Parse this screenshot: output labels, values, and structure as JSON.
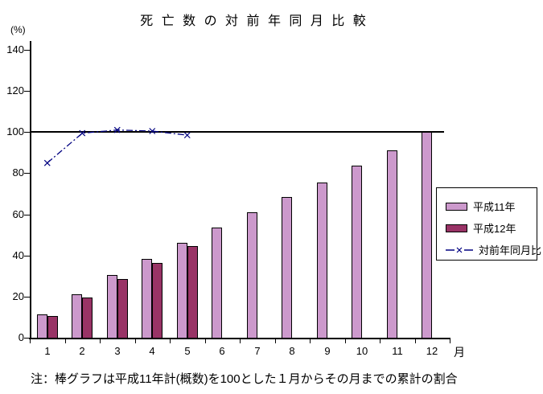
{
  "title_display": "死 亡 数 の 対 前 年 同 月 比 較",
  "y_axis_unit": "(%)",
  "x_axis_unit": "月",
  "note": "注：棒グラフは平成11年計(概数)を100とした１月からその月までの累計の割合",
  "colors": {
    "bar_heisei11": "#CC99CC",
    "bar_heisei12": "#993366",
    "ratio_line": "#000080",
    "axis": "#000000"
  },
  "chart_data": {
    "type": "bar",
    "title": "死亡数の対前年同月比較",
    "categories": [
      "1",
      "2",
      "3",
      "4",
      "5",
      "6",
      "7",
      "8",
      "9",
      "10",
      "11",
      "12"
    ],
    "x_axis_label": "月",
    "y_axis_label": "(%)",
    "ylim": [
      0,
      140
    ],
    "yticks": [
      0,
      20,
      40,
      60,
      80,
      100,
      120,
      140
    ],
    "reference_line": 100,
    "grid": false,
    "legend_position": "right",
    "series": [
      {
        "name": "平成11年",
        "type": "bar",
        "color": "#CC99CC",
        "values": [
          11.5,
          21,
          30.5,
          38.5,
          46,
          53.5,
          61,
          68.5,
          75.5,
          83.5,
          91,
          100
        ]
      },
      {
        "name": "平成12年",
        "type": "bar",
        "color": "#993366",
        "values": [
          10.5,
          19.5,
          28.5,
          36.5,
          44.5,
          null,
          null,
          null,
          null,
          null,
          null,
          null
        ]
      },
      {
        "name": "対前年同月比",
        "type": "line",
        "marker": "x",
        "color": "#000080",
        "values": [
          85,
          99.5,
          101,
          100.5,
          98.5,
          null,
          null,
          null,
          null,
          null,
          null,
          null
        ]
      }
    ]
  }
}
